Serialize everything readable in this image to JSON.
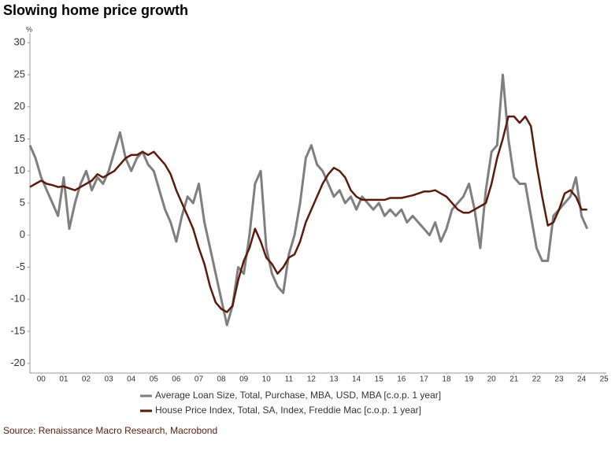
{
  "chart_data": {
    "type": "line",
    "title": "Slowing home price growth",
    "y_unit": "%",
    "source": "Source: Renaissance Macro Research, Macrobond",
    "x": [
      2000,
      2000.25,
      2000.5,
      2000.75,
      2001,
      2001.25,
      2001.5,
      2001.75,
      2002,
      2002.25,
      2002.5,
      2002.75,
      2003,
      2003.25,
      2003.5,
      2003.75,
      2004,
      2004.25,
      2004.5,
      2004.75,
      2005,
      2005.25,
      2005.5,
      2005.75,
      2006,
      2006.25,
      2006.5,
      2006.75,
      2007,
      2007.25,
      2007.5,
      2007.75,
      2008,
      2008.25,
      2008.5,
      2008.75,
      2009,
      2009.25,
      2009.5,
      2009.75,
      2010,
      2010.25,
      2010.5,
      2010.75,
      2011,
      2011.25,
      2011.5,
      2011.75,
      2012,
      2012.25,
      2012.5,
      2012.75,
      2013,
      2013.25,
      2013.5,
      2013.75,
      2014,
      2014.25,
      2014.5,
      2014.75,
      2015,
      2015.25,
      2015.5,
      2015.75,
      2016,
      2016.25,
      2016.5,
      2016.75,
      2017,
      2017.25,
      2017.5,
      2017.75,
      2018,
      2018.25,
      2018.5,
      2018.75,
      2019,
      2019.25,
      2019.5,
      2019.75,
      2020,
      2020.25,
      2020.5,
      2020.75,
      2021,
      2021.25,
      2021.5,
      2021.75,
      2022,
      2022.25,
      2022.5,
      2022.75,
      2023,
      2023.25,
      2023.5,
      2023.75,
      2024,
      2024.25,
      2024.5,
      2024.75
    ],
    "series": [
      {
        "name": "Average Loan Size, Total, Purchase, MBA, USD, MBA [c.o.p. 1 year]",
        "color": "#7f7f7f",
        "width": 3,
        "values": [
          14,
          12,
          9,
          7,
          5,
          3,
          9,
          1,
          5,
          8,
          10,
          7,
          9,
          8,
          10,
          13,
          16,
          12,
          10,
          12,
          13,
          11,
          10,
          7,
          4,
          2,
          -1,
          3,
          6,
          5,
          8,
          2,
          -2,
          -6,
          -10,
          -14,
          -11,
          -5,
          -6,
          0,
          8,
          10,
          -2,
          -6,
          -8,
          -9,
          -3,
          0,
          5,
          12,
          14,
          11,
          10,
          8,
          6,
          7,
          5,
          6,
          4,
          6,
          5,
          4,
          5,
          3,
          4,
          3,
          4,
          2,
          3,
          2,
          1,
          0,
          2,
          -1,
          1,
          4,
          5,
          6,
          8,
          4,
          -2,
          7,
          13,
          14,
          25,
          15,
          9,
          8,
          8,
          3,
          -2,
          -4,
          -4,
          3,
          4,
          5,
          6,
          9,
          3,
          1
        ]
      },
      {
        "name": "House Price Index, Total, SA, Index, Freddie Mac [c.o.p. 1 year]",
        "color": "#5c1a0b",
        "width": 2.5,
        "values": [
          7.5,
          8,
          8.5,
          8,
          7.8,
          7.5,
          7.6,
          7.3,
          7,
          7.5,
          8,
          8.5,
          9.5,
          9,
          9.5,
          10,
          11,
          12,
          12.5,
          12.5,
          13,
          12.5,
          13,
          12,
          11,
          9.5,
          7,
          5,
          3,
          1,
          -2,
          -4.5,
          -8,
          -10.5,
          -11.5,
          -12,
          -11,
          -7,
          -4,
          -2,
          1,
          -1,
          -3.5,
          -4.5,
          -6,
          -5,
          -3.5,
          -3,
          -1,
          2,
          4,
          6,
          8,
          9.5,
          10.5,
          10,
          9,
          7,
          6,
          5.5,
          5.5,
          5.5,
          5.5,
          5.5,
          5.8,
          5.8,
          5.8,
          6,
          6.2,
          6.5,
          6.8,
          6.8,
          7,
          6.5,
          6,
          5,
          4,
          3.5,
          3.5,
          4,
          4.5,
          5,
          8,
          12,
          15,
          18.5,
          18.5,
          17.5,
          18.5,
          17,
          11,
          6,
          1.5,
          2,
          4,
          6.5,
          7,
          6,
          4,
          4
        ]
      }
    ],
    "xlim": [
      2000,
      2025.6
    ],
    "xticks": [
      {
        "value": 2000.5,
        "label": "00"
      },
      {
        "value": 2001.5,
        "label": "01"
      },
      {
        "value": 2002.5,
        "label": "02"
      },
      {
        "value": 2003.5,
        "label": "03"
      },
      {
        "value": 2004.5,
        "label": "04"
      },
      {
        "value": 2005.5,
        "label": "05"
      },
      {
        "value": 2006.5,
        "label": "06"
      },
      {
        "value": 2007.5,
        "label": "07"
      },
      {
        "value": 2008.5,
        "label": "08"
      },
      {
        "value": 2009.5,
        "label": "09"
      },
      {
        "value": 2010.5,
        "label": "10"
      },
      {
        "value": 2011.5,
        "label": "11"
      },
      {
        "value": 2012.5,
        "label": "12"
      },
      {
        "value": 2013.5,
        "label": "13"
      },
      {
        "value": 2014.5,
        "label": "14"
      },
      {
        "value": 2015.5,
        "label": "15"
      },
      {
        "value": 2016.5,
        "label": "16"
      },
      {
        "value": 2017.5,
        "label": "17"
      },
      {
        "value": 2018.5,
        "label": "18"
      },
      {
        "value": 2019.5,
        "label": "19"
      },
      {
        "value": 2020.5,
        "label": "20"
      },
      {
        "value": 2021.5,
        "label": "21"
      },
      {
        "value": 2022.5,
        "label": "22"
      },
      {
        "value": 2023.5,
        "label": "23"
      },
      {
        "value": 2024.5,
        "label": "24"
      },
      {
        "value": 2025.5,
        "label": "25"
      }
    ],
    "ylim": [
      -21.5,
      31.5
    ],
    "yticks": [
      -20,
      -15,
      -10,
      -5,
      0,
      5,
      10,
      15,
      20,
      25,
      30
    ],
    "grid": false
  }
}
